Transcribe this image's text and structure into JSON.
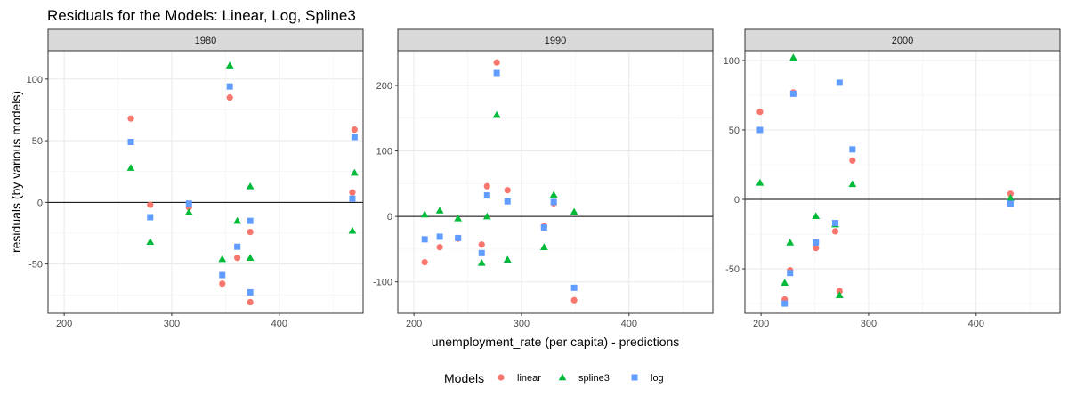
{
  "chart_data": {
    "type": "scatter",
    "title": "Residuals for the Models: Linear, Log, Spline3",
    "xlabel": "unemployment_rate (per capita) - predictions",
    "ylabel": "residuals (by various models)",
    "grid": true,
    "hline": 0,
    "legend": {
      "title": "Models",
      "position": "bottom",
      "entries": [
        {
          "key": "linear",
          "label": "linear",
          "color": "#F8766D",
          "shape": "circle"
        },
        {
          "key": "spline3",
          "label": "spline3",
          "color": "#00BA38",
          "shape": "triangle"
        },
        {
          "key": "log",
          "label": "log",
          "color": "#619CFF",
          "shape": "square"
        }
      ]
    },
    "panels": [
      {
        "label": "1980",
        "xlim": [
          185,
          478
        ],
        "ylim": [
          -90,
          123
        ],
        "xticks": [
          200,
          300,
          400
        ],
        "yticks": [
          -50,
          0,
          50,
          100
        ],
        "series": [
          {
            "key": "linear",
            "x": [
              262,
              280,
              316,
              347,
              354,
              361,
              373,
              373,
              468,
              470
            ],
            "y": [
              68,
              -2,
              -4,
              -66,
              85,
              -45,
              -24,
              -81,
              8,
              59
            ]
          },
          {
            "key": "spline3",
            "x": [
              262,
              280,
              316,
              347,
              354,
              361,
              373,
              373,
              468,
              470
            ],
            "y": [
              28,
              -32,
              -8,
              -46,
              111,
              -15,
              13,
              -45,
              -23,
              24
            ]
          },
          {
            "key": "log",
            "x": [
              262,
              280,
              316,
              347,
              354,
              361,
              373,
              373,
              468,
              470
            ],
            "y": [
              49,
              -12,
              -1,
              -59,
              94,
              -36,
              -15,
              -73,
              3,
              53
            ]
          }
        ]
      },
      {
        "label": "1990",
        "xlim": [
          185,
          478
        ],
        "ylim": [
          -148,
          253
        ],
        "xticks": [
          200,
          300,
          400
        ],
        "yticks": [
          -100,
          0,
          100,
          200
        ],
        "series": [
          {
            "key": "linear",
            "x": [
              210,
              224,
              241,
              263,
              268,
              277,
              287,
              321,
              330,
              349
            ],
            "y": [
              -70,
              -47,
              -34,
              -43,
              46,
              235,
              40,
              -15,
              20,
              -128
            ]
          },
          {
            "key": "spline3",
            "x": [
              210,
              224,
              241,
              263,
              268,
              277,
              287,
              321,
              330,
              349
            ],
            "y": [
              3,
              9,
              -3,
              -71,
              0,
              155,
              -66,
              -47,
              33,
              7
            ]
          },
          {
            "key": "log",
            "x": [
              210,
              224,
              241,
              263,
              268,
              277,
              287,
              321,
              330,
              349
            ],
            "y": [
              -35,
              -31,
              -33,
              -56,
              32,
              219,
              23,
              -17,
              22,
              -109
            ]
          }
        ]
      },
      {
        "label": "2000",
        "xlim": [
          185,
          478
        ],
        "ylim": [
          -82,
          107
        ],
        "xticks": [
          200,
          300,
          400
        ],
        "yticks": [
          -50,
          0,
          50,
          100
        ],
        "series": [
          {
            "key": "linear",
            "x": [
              199,
              222,
              227,
              230,
              251,
              269,
              273,
              285,
              432
            ],
            "y": [
              63,
              -72,
              -51,
              77,
              -35,
              -23,
              -66,
              28,
              4
            ]
          },
          {
            "key": "spline3",
            "x": [
              199,
              222,
              227,
              230,
              251,
              269,
              273,
              285,
              432
            ],
            "y": [
              12,
              -60,
              -31,
              102,
              -12,
              -18,
              -69,
              11,
              1
            ]
          },
          {
            "key": "log",
            "x": [
              199,
              222,
              227,
              230,
              251,
              269,
              273,
              285,
              432
            ],
            "y": [
              50,
              -75,
              -53,
              76,
              -31,
              -17,
              84,
              36,
              -3
            ]
          }
        ]
      }
    ]
  }
}
